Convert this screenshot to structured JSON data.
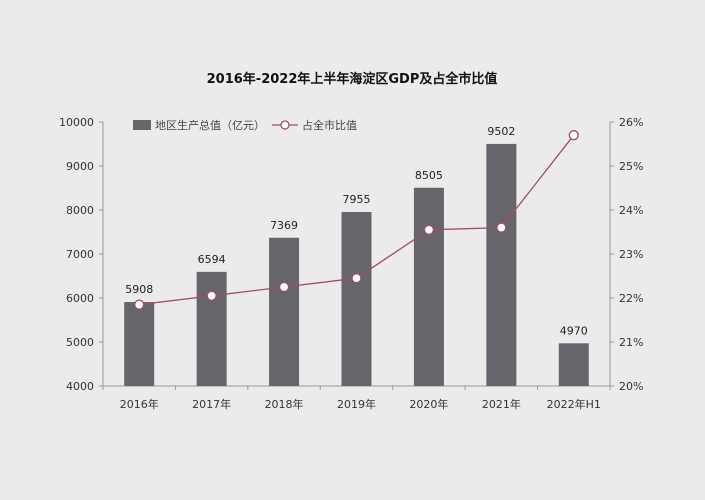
{
  "colors": {
    "bar": "#66656c",
    "line": "#a24a6e",
    "marker_fill": "#ffffff",
    "axis": "#9a9a9a",
    "text": "#333333"
  },
  "chart_data": {
    "type": "bar",
    "title": "2016年-2022年上半年海淀区GDP及占全市比值",
    "categories": [
      "2016年",
      "2017年",
      "2018年",
      "2019年",
      "2020年",
      "2021年",
      "2022年H1"
    ],
    "series": [
      {
        "name": "地区生产总值（亿元）",
        "type": "bar",
        "axis": "left",
        "values": [
          5908,
          6594,
          7369,
          7955,
          8505,
          9502,
          4970
        ],
        "labels": [
          "5908",
          "6594",
          "7369",
          "7955",
          "8505",
          "9502",
          "4970"
        ]
      },
      {
        "name": "占全市比值",
        "type": "line",
        "axis": "right",
        "values": [
          21.85,
          22.05,
          22.25,
          22.45,
          23.55,
          23.6,
          25.7
        ]
      }
    ],
    "y_left": {
      "min": 4000,
      "max": 10000,
      "ticks": [
        4000,
        5000,
        6000,
        7000,
        8000,
        9000,
        10000
      ],
      "tick_labels": [
        "4000",
        "5000",
        "6000",
        "7000",
        "8000",
        "9000",
        "10000"
      ]
    },
    "y_right": {
      "min": 20,
      "max": 26,
      "ticks": [
        20,
        21,
        22,
        23,
        24,
        25,
        26
      ],
      "tick_labels": [
        "20%",
        "21%",
        "22%",
        "23%",
        "24%",
        "25%",
        "26%"
      ]
    },
    "grid": false,
    "legend": "top-left"
  }
}
